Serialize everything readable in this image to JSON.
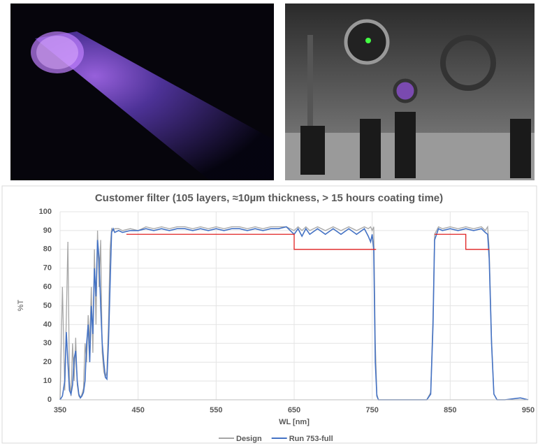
{
  "chart_data": {
    "type": "line",
    "title": "Customer filter (105 layers, ≈10µm thickness, > 15 hours coating time)",
    "xlabel": "WL [nm]",
    "ylabel": "%T",
    "xlim": [
      350,
      950
    ],
    "xticks": [
      350,
      450,
      550,
      650,
      750,
      850,
      950
    ],
    "ylim": [
      0,
      100
    ],
    "yticks": [
      0,
      10,
      20,
      30,
      40,
      50,
      60,
      70,
      80,
      90,
      100
    ],
    "grid": true,
    "legend": "bottom",
    "series": [
      {
        "name": "Design",
        "color": "#a6a6a6",
        "x": [
          350,
          353,
          356,
          358,
          360,
          362,
          364,
          366,
          368,
          370,
          372,
          374,
          376,
          378,
          380,
          382,
          384,
          386,
          388,
          390,
          392,
          394,
          396,
          398,
          400,
          402,
          404,
          406,
          408,
          410,
          412,
          414,
          416,
          418,
          420,
          425,
          430,
          440,
          450,
          460,
          470,
          480,
          490,
          500,
          510,
          520,
          530,
          540,
          550,
          560,
          570,
          580,
          590,
          600,
          610,
          620,
          630,
          640,
          650,
          655,
          660,
          665,
          670,
          680,
          690,
          700,
          710,
          720,
          730,
          740,
          745,
          748,
          750,
          752,
          754,
          756,
          758,
          760,
          770,
          800,
          820,
          825,
          828,
          830,
          835,
          840,
          850,
          860,
          870,
          880,
          890,
          895,
          898,
          900,
          903,
          906,
          910,
          920,
          940,
          950
        ],
        "values": [
          0,
          60,
          5,
          44,
          84,
          10,
          2,
          30,
          10,
          33,
          8,
          2,
          1,
          3,
          6,
          30,
          20,
          45,
          30,
          60,
          25,
          80,
          40,
          90,
          60,
          85,
          25,
          15,
          12,
          15,
          40,
          80,
          91,
          90,
          91,
          91,
          90,
          91,
          90,
          92,
          91,
          92,
          91,
          92,
          92,
          91,
          92,
          91,
          92,
          91,
          92,
          92,
          91,
          92,
          91,
          92,
          92,
          92,
          90,
          92,
          90,
          92,
          90,
          92,
          90,
          92,
          90,
          92,
          90,
          92,
          91,
          92,
          90,
          92,
          30,
          3,
          0,
          0,
          0,
          0,
          0,
          4,
          45,
          88,
          92,
          91,
          92,
          91,
          92,
          91,
          92,
          90,
          92,
          80,
          32,
          3,
          0,
          0,
          0,
          0
        ]
      },
      {
        "name": "Run 753-full",
        "color": "#4472c4",
        "x": [
          350,
          353,
          356,
          358,
          360,
          362,
          364,
          366,
          368,
          370,
          372,
          374,
          376,
          378,
          380,
          382,
          384,
          386,
          388,
          390,
          392,
          394,
          396,
          398,
          400,
          402,
          404,
          406,
          408,
          410,
          412,
          414,
          416,
          418,
          420,
          425,
          430,
          440,
          450,
          460,
          470,
          480,
          490,
          500,
          510,
          520,
          530,
          540,
          550,
          560,
          570,
          580,
          590,
          600,
          610,
          620,
          630,
          640,
          650,
          655,
          660,
          665,
          670,
          680,
          690,
          700,
          710,
          720,
          730,
          740,
          745,
          748,
          750,
          752,
          754,
          756,
          758,
          760,
          770,
          800,
          820,
          825,
          828,
          830,
          835,
          840,
          850,
          860,
          870,
          880,
          890,
          895,
          898,
          900,
          903,
          906,
          910,
          920,
          940,
          950
        ],
        "values": [
          0,
          2,
          10,
          36,
          20,
          5,
          3,
          8,
          22,
          26,
          10,
          3,
          1,
          2,
          4,
          10,
          30,
          40,
          20,
          50,
          35,
          70,
          55,
          85,
          75,
          50,
          30,
          20,
          12,
          11,
          30,
          60,
          89,
          91,
          89,
          90,
          89,
          90,
          90,
          91,
          90,
          91,
          90,
          91,
          91,
          90,
          91,
          90,
          91,
          90,
          91,
          91,
          90,
          91,
          90,
          91,
          91,
          92,
          88,
          91,
          87,
          91,
          88,
          91,
          88,
          91,
          88,
          91,
          88,
          91,
          87,
          84,
          88,
          80,
          20,
          2,
          0,
          0,
          0,
          0,
          0,
          3,
          40,
          85,
          91,
          90,
          91,
          90,
          91,
          90,
          91,
          89,
          88,
          75,
          30,
          3,
          0,
          0,
          1,
          0
        ]
      },
      {
        "color": "#e02020",
        "x": [
          435,
          650,
          650,
          755
        ],
        "values": [
          88,
          88,
          80,
          80
        ]
      },
      {
        "color": "#e02020",
        "x": [
          830,
          870,
          870,
          900
        ],
        "values": [
          88,
          88,
          80,
          80
        ]
      }
    ]
  }
}
